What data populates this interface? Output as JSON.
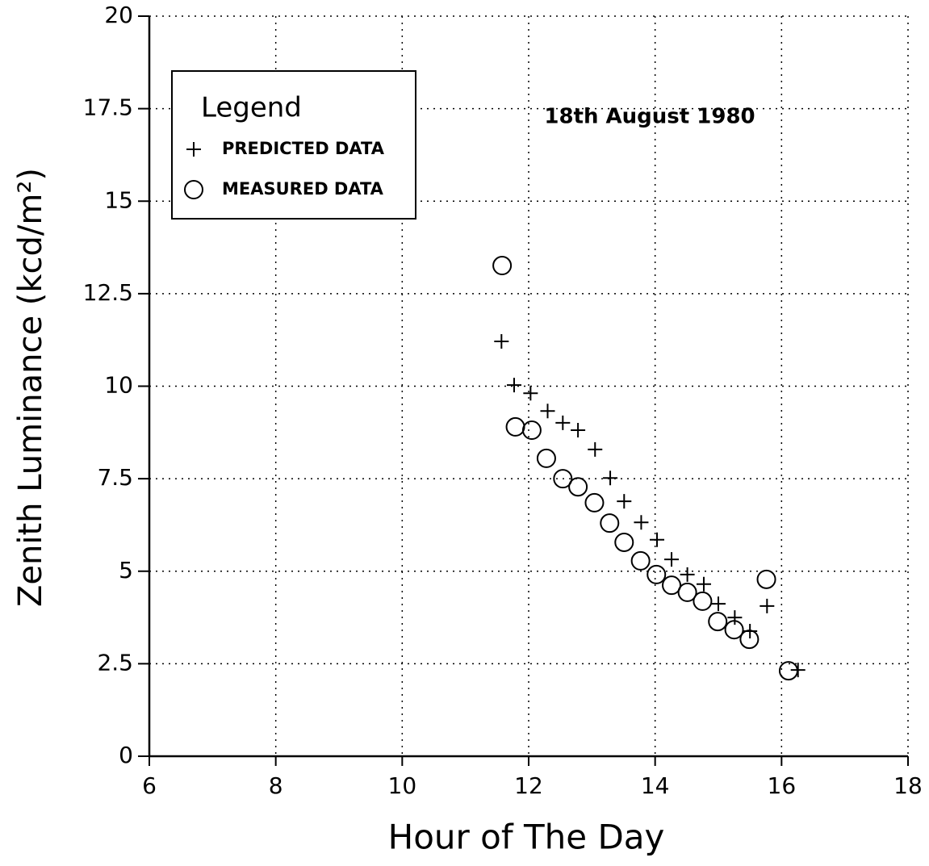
{
  "chart_data": {
    "type": "scatter",
    "ylabel": "Zenith Luminance (kcd/m²)",
    "xlabel": "Hour of The Day",
    "annotation": "18th August 1980",
    "legend_title": "Legend",
    "legend": "upper left",
    "grid": true,
    "xlim": [
      6,
      18
    ],
    "xticks": [
      6,
      8,
      10,
      12,
      14,
      16,
      18
    ],
    "ylim": [
      0,
      20
    ],
    "yticks": [
      0,
      2.5,
      5,
      7.5,
      10,
      12.5,
      15,
      17.5,
      20
    ],
    "series": [
      {
        "name": "PREDICTED DATA",
        "color": "#000000",
        "marker": "plus",
        "x": [
          11.57,
          11.77,
          12.03,
          12.3,
          12.54,
          12.78,
          13.05,
          13.29,
          13.51,
          13.78,
          14.03,
          14.26,
          14.51,
          14.77,
          15.0,
          15.26,
          15.5,
          15.77,
          16.26
        ],
        "values": [
          11.21,
          10.03,
          9.81,
          9.33,
          9.01,
          8.81,
          8.29,
          7.52,
          6.89,
          6.32,
          5.85,
          5.32,
          4.91,
          4.65,
          4.12,
          3.75,
          3.38,
          4.06,
          2.33
        ]
      },
      {
        "name": "MEASURED DATA",
        "color": "#000000",
        "marker": "circle",
        "x": [
          11.58,
          11.79,
          12.05,
          12.28,
          12.54,
          12.78,
          13.04,
          13.28,
          13.51,
          13.77,
          14.02,
          14.26,
          14.51,
          14.75,
          14.99,
          15.25,
          15.49,
          15.76,
          16.11
        ],
        "values": [
          13.26,
          8.9,
          8.81,
          8.05,
          7.5,
          7.28,
          6.85,
          6.3,
          5.78,
          5.28,
          4.91,
          4.62,
          4.43,
          4.19,
          3.64,
          3.42,
          3.16,
          4.78,
          2.31
        ]
      }
    ]
  }
}
